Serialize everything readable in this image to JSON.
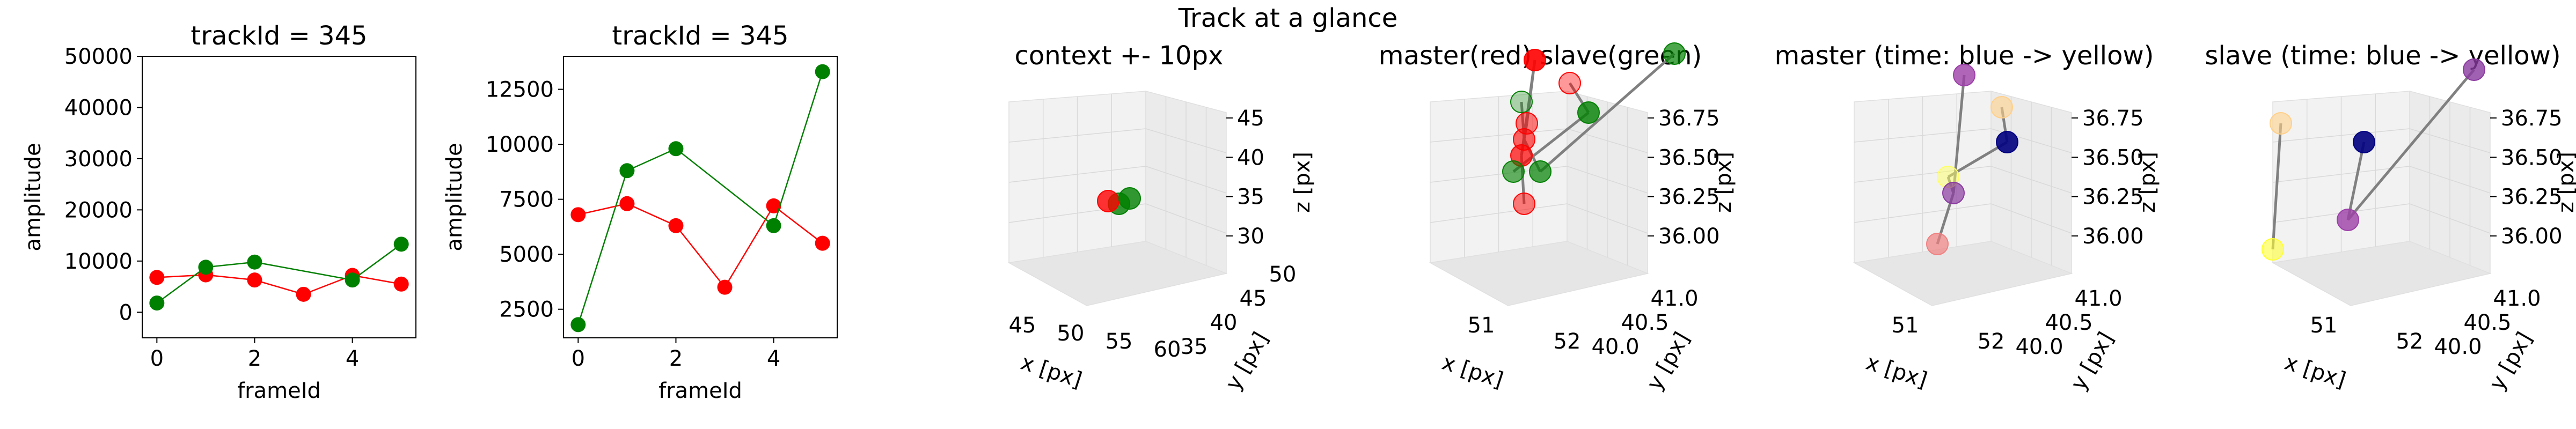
{
  "figure": {
    "suptitle": "Track at a glance"
  },
  "colors": {
    "red": "#ff0000",
    "green": "#008000",
    "gray": "#808080",
    "pane": "#f2f2f2",
    "grid": "#d9d9d9"
  },
  "chart_data": [
    {
      "type": "line",
      "title": "trackId = 345",
      "xlabel": "frameId",
      "ylabel": "amplitude",
      "xlim": [
        -0.3,
        5.3
      ],
      "ylim": [
        -5000,
        50000
      ],
      "xticks": [
        0,
        2,
        4
      ],
      "yticks": [
        0,
        10000,
        20000,
        30000,
        40000,
        50000
      ],
      "grid": false,
      "series": [
        {
          "color": "#ff0000",
          "x": [
            0,
            1,
            2,
            3,
            4,
            5
          ],
          "y": [
            6800,
            7300,
            6300,
            3500,
            7200,
            5500
          ]
        },
        {
          "color": "#008000",
          "x": [
            0,
            1,
            2,
            4,
            5
          ],
          "y": [
            1800,
            8800,
            9800,
            6300,
            13300
          ]
        }
      ]
    },
    {
      "type": "line",
      "title": "trackId = 345",
      "xlabel": "frameId",
      "ylabel": "amplitude",
      "xlim": [
        -0.3,
        5.3
      ],
      "ylim": [
        1200,
        14000
      ],
      "xticks": [
        0,
        2,
        4
      ],
      "yticks": [
        2500,
        5000,
        7500,
        10000,
        12500
      ],
      "grid": false,
      "series": [
        {
          "color": "#ff0000",
          "x": [
            0,
            1,
            2,
            3,
            4,
            5
          ],
          "y": [
            6800,
            7300,
            6300,
            3500,
            7200,
            5500
          ]
        },
        {
          "color": "#008000",
          "x": [
            0,
            1,
            2,
            4,
            5
          ],
          "y": [
            1800,
            8800,
            9800,
            6300,
            13300
          ]
        }
      ]
    },
    {
      "type": "scatter",
      "projection": "3d",
      "title": "context +- 10px",
      "xlabel": "x [px]",
      "ylabel": "y [px]",
      "zlabel": "z [px]",
      "xticks": [
        "45",
        "50",
        "55",
        "60"
      ],
      "yticks": [
        "35",
        "40",
        "45",
        "50"
      ],
      "zticks": [
        "30",
        "35",
        "40",
        "45"
      ],
      "markers": [
        {
          "color": "#008000",
          "alpha": 0.8
        },
        {
          "color": "#ff0000",
          "alpha": 0.8
        },
        {
          "color": "#008000",
          "alpha": 0.8
        }
      ]
    },
    {
      "type": "scatter",
      "projection": "3d",
      "title": "master(red) slave(green)",
      "xlabel": "x [px]",
      "ylabel": "y [px]",
      "zlabel": "z [px]",
      "xticks": [
        "51",
        "52"
      ],
      "yticks": [
        "40.0",
        "40.5",
        "41.0"
      ],
      "zticks": [
        "36.00",
        "36.25",
        "36.50",
        "36.75"
      ],
      "lines_color": "#808080",
      "markers": [
        {
          "color": "#ff0000",
          "alpha": 0.9
        },
        {
          "color": "#ff0000",
          "alpha": 0.4
        },
        {
          "color": "#008000",
          "alpha": 0.3
        },
        {
          "color": "#ff0000",
          "alpha": 0.5
        },
        {
          "color": "#008000",
          "alpha": 0.8
        },
        {
          "color": "#ff0000",
          "alpha": 0.6
        },
        {
          "color": "#ff0000",
          "alpha": 0.7
        },
        {
          "color": "#008000",
          "alpha": 0.6
        },
        {
          "color": "#008000",
          "alpha": 0.7
        },
        {
          "color": "#ff0000",
          "alpha": 0.5
        },
        {
          "color": "#008000",
          "alpha": 0.7
        }
      ]
    },
    {
      "type": "scatter",
      "projection": "3d",
      "title": "master (time: blue -> yellow)",
      "xlabel": "x [px]",
      "ylabel": "y [px]",
      "zlabel": "z [px]",
      "xticks": [
        "51",
        "52"
      ],
      "yticks": [
        "40.0",
        "40.5",
        "41.0"
      ],
      "zticks": [
        "36.00",
        "36.25",
        "36.50",
        "36.75"
      ],
      "lines_color": "#808080",
      "markers": [
        {
          "color": "#9c3fa8",
          "alpha": 0.8
        },
        {
          "color": "#ffd08a",
          "alpha": 0.6
        },
        {
          "color": "#000080",
          "alpha": 0.9
        },
        {
          "color": "#ffff66",
          "alpha": 0.5
        },
        {
          "color": "#8a3aa0",
          "alpha": 0.7
        },
        {
          "color": "#f08080",
          "alpha": 0.7
        }
      ]
    },
    {
      "type": "scatter",
      "projection": "3d",
      "title": "slave (time: blue -> yellow)",
      "xlabel": "x [px]",
      "ylabel": "y [px]",
      "zlabel": "z [px]",
      "xticks": [
        "51",
        "52"
      ],
      "yticks": [
        "40.0",
        "40.5",
        "41.0"
      ],
      "zticks": [
        "36.00",
        "36.25",
        "36.50",
        "36.75"
      ],
      "lines_color": "#808080",
      "markers": [
        {
          "color": "#ffd08a",
          "alpha": 0.6
        },
        {
          "color": "#000080",
          "alpha": 0.9
        },
        {
          "color": "#9c3fa8",
          "alpha": 0.8
        },
        {
          "color": "#8a3aa0",
          "alpha": 0.8
        },
        {
          "color": "#ffff33",
          "alpha": 0.6
        }
      ]
    }
  ]
}
